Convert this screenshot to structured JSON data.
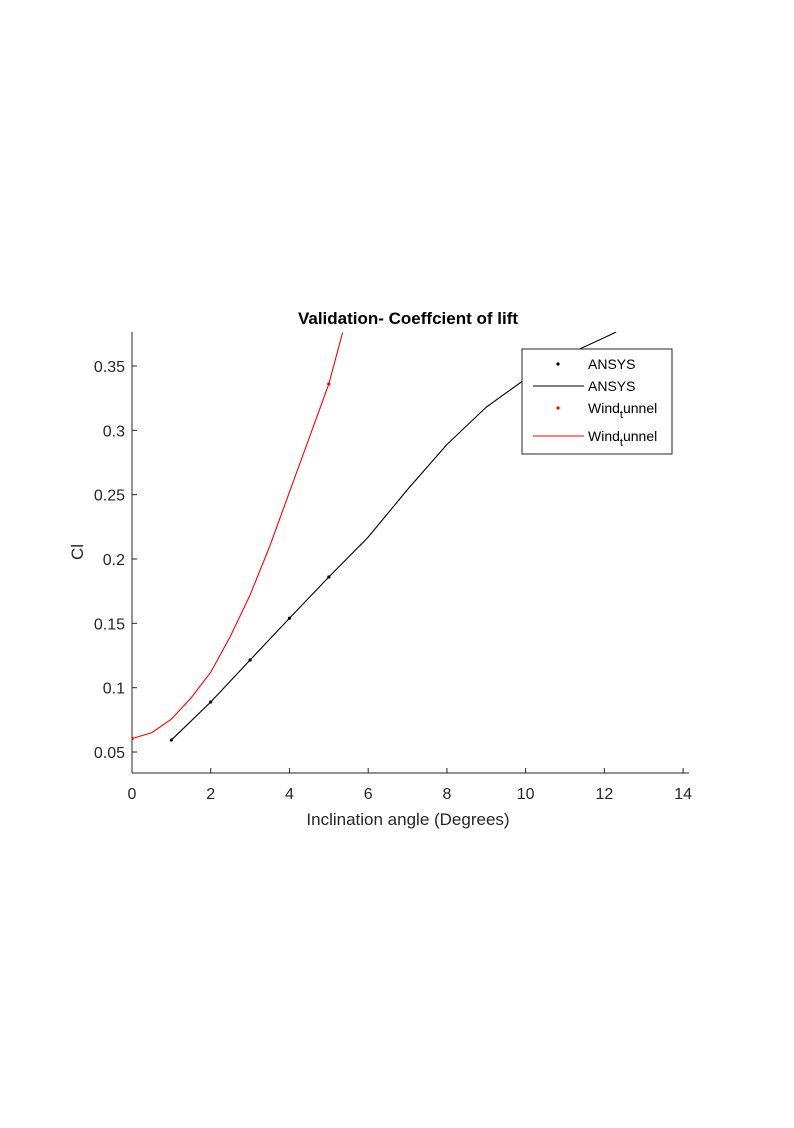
{
  "chart_data": {
    "type": "line",
    "title": "Validation- Coeffcient of lift",
    "xlabel": "Inclination angle (Degrees)",
    "ylabel": "Cl",
    "xlim": [
      0,
      14.15
    ],
    "ylim": [
      0.0337,
      0.3764
    ],
    "xticks": [
      0,
      2,
      4,
      6,
      8,
      10,
      12,
      14
    ],
    "yticks": [
      0.05,
      0.1,
      0.15,
      0.2,
      0.25,
      0.3,
      0.35
    ],
    "legend": "upper right",
    "interpreter": "tex",
    "series": [
      {
        "name": "ANSYS",
        "mode": "markers",
        "color": "#000000",
        "x": [
          1,
          2,
          3,
          4,
          5
        ],
        "values": [
          0.0593,
          0.0889,
          0.1215,
          0.154,
          0.186
        ]
      },
      {
        "name": "ANSYS",
        "mode": "line",
        "color": "#000000",
        "x": [
          1,
          2,
          3,
          4,
          5,
          6,
          7,
          8,
          9,
          10,
          11,
          12,
          12.3
        ],
        "values": [
          0.0593,
          0.0889,
          0.1215,
          0.154,
          0.186,
          0.217,
          0.254,
          0.289,
          0.318,
          0.34,
          0.358,
          0.372,
          0.3764
        ]
      },
      {
        "name": "Wind_tunnel",
        "mode": "markers",
        "color": "#ff0000",
        "x": [
          0,
          5
        ],
        "values": [
          0.0605,
          0.336
        ]
      },
      {
        "name": "Wind_tunnel",
        "mode": "line",
        "color": "#ff0000",
        "x": [
          0,
          0.5,
          1,
          1.5,
          2,
          2.5,
          3,
          3.5,
          4,
          4.5,
          5,
          5.35
        ],
        "values": [
          0.0605,
          0.065,
          0.0756,
          0.092,
          0.112,
          0.14,
          0.172,
          0.21,
          0.252,
          0.294,
          0.336,
          0.376
        ]
      }
    ]
  }
}
